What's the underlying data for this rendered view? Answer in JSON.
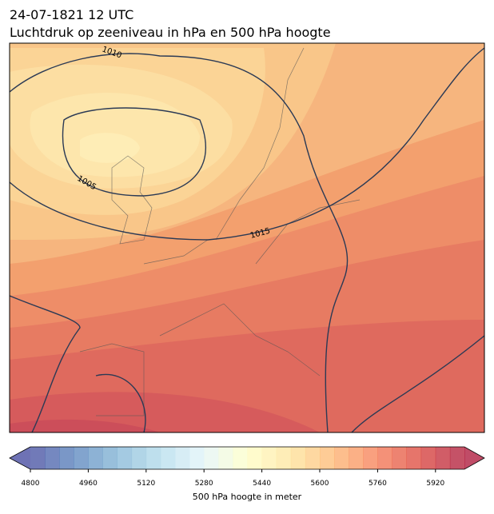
{
  "header": {
    "date": "24-07-1821 12 UTC",
    "title": "Luchtdruk op zeeniveau in hPa en 500 hPa hoogte"
  },
  "map": {
    "isobar_labels": [
      1010,
      1005,
      1015
    ]
  },
  "colorbar": {
    "label": "500 hPa hoogte in meter",
    "lim": [
      4800,
      6000
    ],
    "step": 40,
    "ticks": [
      4800,
      4960,
      5120,
      5280,
      5440,
      5600,
      5760,
      5920
    ],
    "colors": [
      "#313695",
      "#4575b4",
      "#74add1",
      "#abd9e9",
      "#e0f3f8",
      "#ffffbf",
      "#fee090",
      "#fdae61",
      "#f46d43",
      "#d73027",
      "#a50026"
    ],
    "extend": "both"
  }
}
